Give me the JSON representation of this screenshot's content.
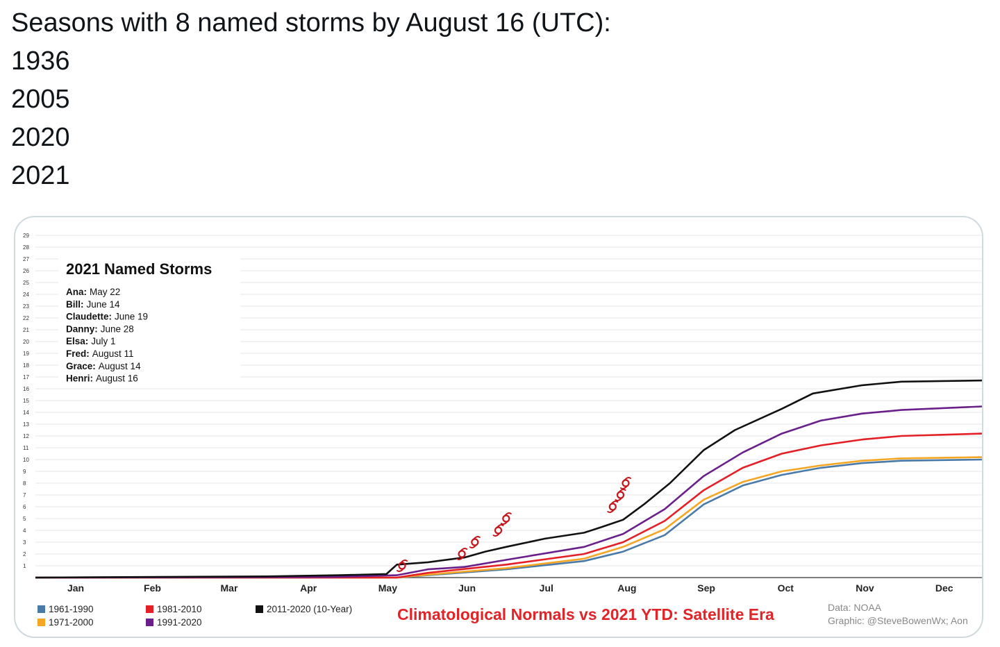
{
  "tweet": {
    "lines": [
      "Seasons with 8 named storms by August 16 (UTC):",
      "1936",
      "2005",
      "2020",
      "2021"
    ]
  },
  "colors": {
    "1961-1990": "#4a7ba8",
    "1971-2000": "#f5a623",
    "1981-2010": "#e41f26",
    "1991-2020": "#6a1f8a",
    "2011-2020": "#111111",
    "storm_marker": "#c4161c",
    "title": "#e02428",
    "grid": "#e6e6e6"
  },
  "chart_data": {
    "type": "line",
    "title": "Climatological Normals vs 2021 YTD: Satellite Era",
    "inset_title": "2021 Named Storms",
    "storms": [
      {
        "name": "Ana:",
        "date": "May 22",
        "day": 142,
        "count": 1
      },
      {
        "name": "Bill:",
        "date": "June 14",
        "day": 165,
        "count": 2
      },
      {
        "name": "Claudette:",
        "date": "June 19",
        "day": 170,
        "count": 3
      },
      {
        "name": "Danny:",
        "date": "June 28",
        "day": 179,
        "count": 4
      },
      {
        "name": "Elsa:",
        "date": "July 1",
        "day": 182,
        "count": 5
      },
      {
        "name": "Fred:",
        "date": "August 11",
        "day": 223,
        "count": 6
      },
      {
        "name": "Grace:",
        "date": "August 14",
        "day": 226,
        "count": 7
      },
      {
        "name": "Henri:",
        "date": "August 16",
        "day": 228,
        "count": 8
      }
    ],
    "months": [
      "Jan",
      "Feb",
      "Mar",
      "Apr",
      "May",
      "Jun",
      "Jul",
      "Aug",
      "Sep",
      "Oct",
      "Nov",
      "Dec"
    ],
    "y_ticks": [
      1,
      2,
      3,
      4,
      5,
      6,
      7,
      8,
      9,
      10,
      11,
      12,
      13,
      14,
      15,
      16,
      17,
      18,
      19,
      20,
      21,
      22,
      23,
      24,
      25,
      26,
      27,
      28,
      29
    ],
    "ylim": [
      0,
      30
    ],
    "xlim_day": [
      1,
      365
    ],
    "series": [
      {
        "name": "1961-1990",
        "key": "1961-1990",
        "points": [
          [
            1,
            0
          ],
          [
            140,
            0
          ],
          [
            152,
            0.2
          ],
          [
            182,
            0.7
          ],
          [
            212,
            1.4
          ],
          [
            227,
            2.2
          ],
          [
            243,
            3.6
          ],
          [
            258,
            6.2
          ],
          [
            273,
            7.8
          ],
          [
            288,
            8.7
          ],
          [
            303,
            9.3
          ],
          [
            319,
            9.7
          ],
          [
            334,
            9.9
          ],
          [
            365,
            10
          ]
        ]
      },
      {
        "name": "1971-2000",
        "key": "1971-2000",
        "points": [
          [
            1,
            0
          ],
          [
            140,
            0
          ],
          [
            152,
            0.25
          ],
          [
            182,
            0.8
          ],
          [
            212,
            1.6
          ],
          [
            227,
            2.6
          ],
          [
            243,
            4.1
          ],
          [
            258,
            6.6
          ],
          [
            273,
            8.1
          ],
          [
            288,
            9
          ],
          [
            303,
            9.5
          ],
          [
            319,
            9.9
          ],
          [
            334,
            10.1
          ],
          [
            365,
            10.2
          ]
        ]
      },
      {
        "name": "1981-2010",
        "key": "1981-2010",
        "points": [
          [
            1,
            0
          ],
          [
            140,
            0
          ],
          [
            152,
            0.4
          ],
          [
            182,
            1.1
          ],
          [
            212,
            2.0
          ],
          [
            227,
            3.0
          ],
          [
            243,
            4.8
          ],
          [
            258,
            7.4
          ],
          [
            273,
            9.3
          ],
          [
            288,
            10.5
          ],
          [
            303,
            11.2
          ],
          [
            319,
            11.7
          ],
          [
            334,
            12
          ],
          [
            365,
            12.2
          ]
        ]
      },
      {
        "name": "1991-2020",
        "key": "1991-2020",
        "points": [
          [
            1,
            0
          ],
          [
            115,
            0.05
          ],
          [
            140,
            0.2
          ],
          [
            152,
            0.7
          ],
          [
            166,
            0.9
          ],
          [
            182,
            1.5
          ],
          [
            212,
            2.6
          ],
          [
            227,
            3.7
          ],
          [
            243,
            5.8
          ],
          [
            258,
            8.6
          ],
          [
            273,
            10.6
          ],
          [
            288,
            12.2
          ],
          [
            303,
            13.3
          ],
          [
            319,
            13.9
          ],
          [
            334,
            14.2
          ],
          [
            365,
            14.5
          ]
        ]
      },
      {
        "name": "2011-2020 (10-Year)",
        "key": "2011-2020",
        "points": [
          [
            1,
            0
          ],
          [
            90,
            0.1
          ],
          [
            118,
            0.2
          ],
          [
            136,
            0.3
          ],
          [
            140,
            1.1
          ],
          [
            152,
            1.3
          ],
          [
            166,
            1.7
          ],
          [
            174,
            2.2
          ],
          [
            182,
            2.6
          ],
          [
            197,
            3.3
          ],
          [
            212,
            3.8
          ],
          [
            219,
            4.3
          ],
          [
            227,
            4.9
          ],
          [
            235,
            6.2
          ],
          [
            245,
            8.0
          ],
          [
            258,
            10.8
          ],
          [
            270,
            12.5
          ],
          [
            288,
            14.3
          ],
          [
            300,
            15.6
          ],
          [
            319,
            16.3
          ],
          [
            334,
            16.6
          ],
          [
            365,
            16.7
          ]
        ]
      }
    ],
    "legend": [
      {
        "label": "1961-1990",
        "key": "1961-1990"
      },
      {
        "label": "1971-2000",
        "key": "1971-2000"
      },
      {
        "label": "1981-2010",
        "key": "1981-2010"
      },
      {
        "label": "1991-2020",
        "key": "1991-2020"
      },
      {
        "label": "2011-2020 (10-Year)",
        "key": "2011-2020"
      }
    ],
    "credits": [
      "Data: NOAA",
      "Graphic: @SteveBowenWx; Aon"
    ]
  }
}
